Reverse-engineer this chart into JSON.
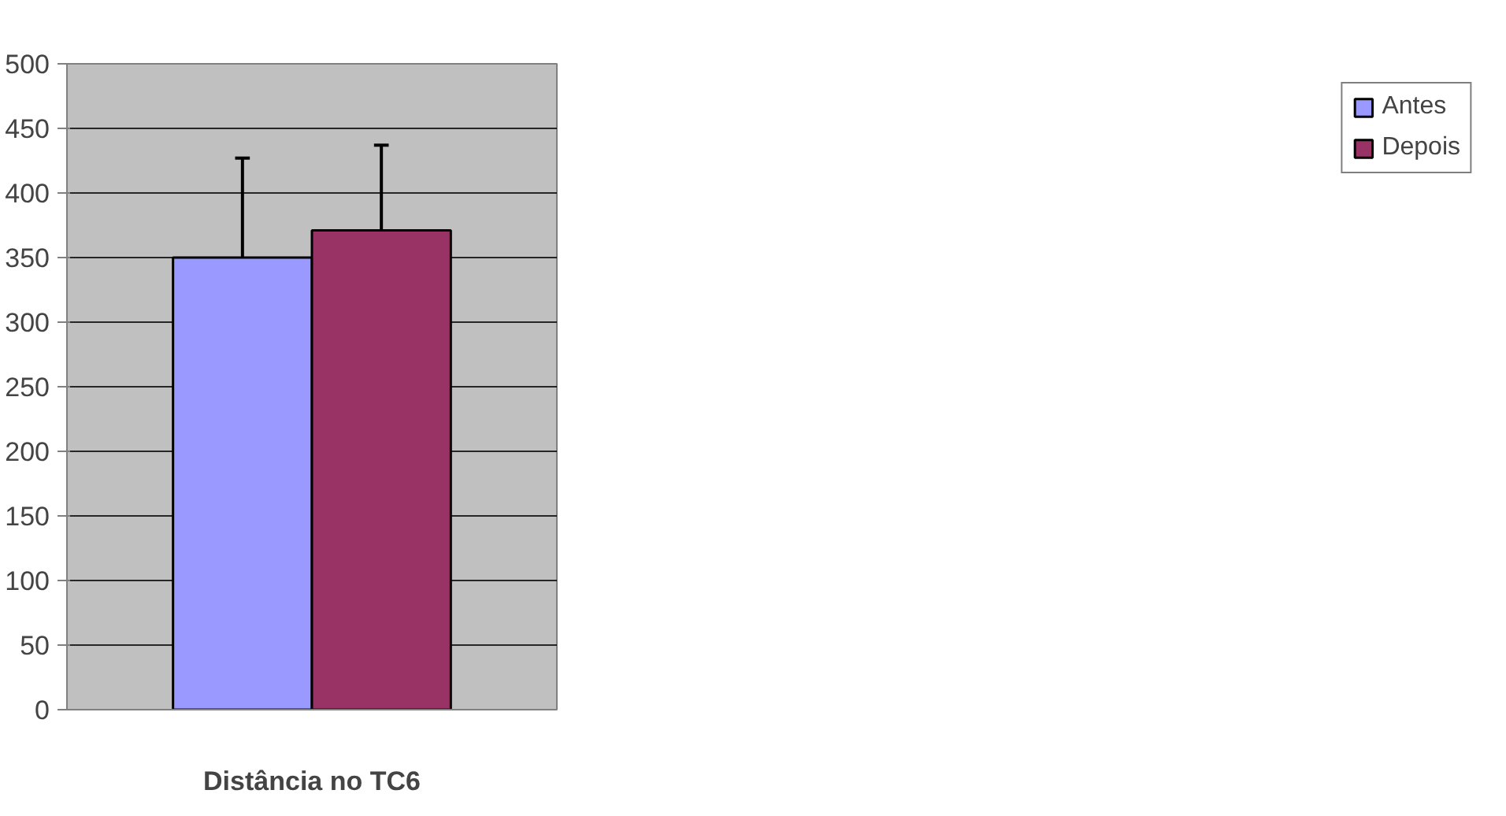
{
  "chart_data": {
    "type": "bar",
    "xlabel": "Distância no TC6",
    "categories": [
      null
    ],
    "series": [
      {
        "name": "Antes",
        "color": "#9999ff",
        "values": [
          350
        ],
        "errors": [
          [
            350,
            427
          ]
        ]
      },
      {
        "name": "Depois",
        "color": "#993366",
        "values": [
          371
        ],
        "errors": [
          [
            371,
            437
          ]
        ]
      }
    ],
    "ylim": [
      0,
      500
    ],
    "yticks": [
      0,
      50,
      100,
      150,
      200,
      250,
      300,
      350,
      400,
      450,
      500
    ],
    "grid": "y",
    "legend": "right"
  }
}
